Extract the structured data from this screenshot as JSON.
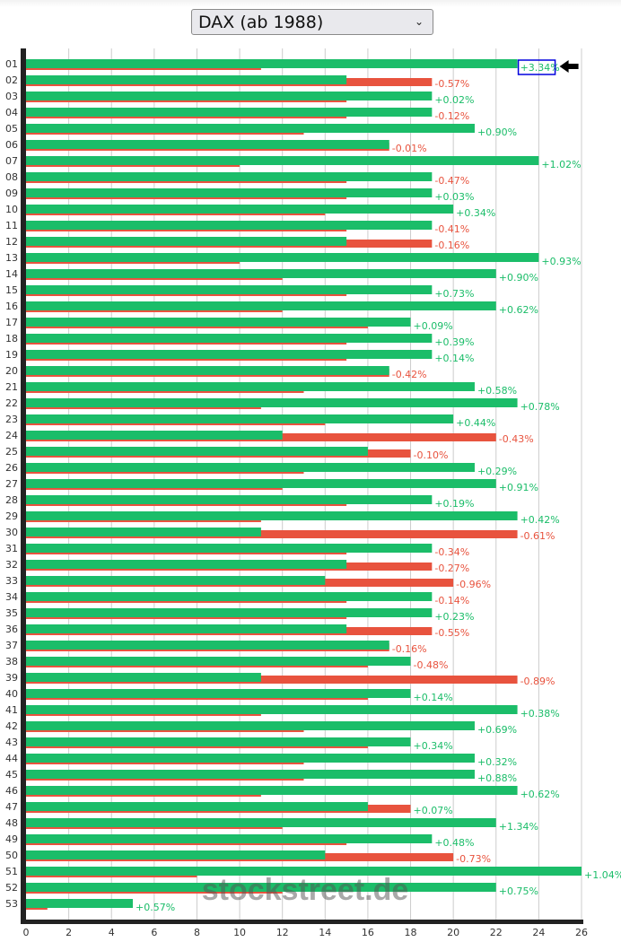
{
  "header": {
    "index_select": {
      "selected": "DAX (ab 1988)",
      "chevron": "chevron-down-icon"
    }
  },
  "watermark": "stockstreet.de",
  "highlight": {
    "week": "01",
    "marker": "arrow-left-icon",
    "box_color": "#0000dd"
  },
  "colors": {
    "positive": "#1bbd69",
    "negative": "#e8533e",
    "axis": "#222222",
    "grid": "#cccccc"
  },
  "chart_data": {
    "type": "bar",
    "orientation": "horizontal",
    "title": "DAX (ab 1988)",
    "xlabel": "",
    "ylabel": "",
    "xlim": [
      0,
      26
    ],
    "x_ticks": [
      "0",
      "2",
      "4",
      "6",
      "8",
      "10",
      "12",
      "14",
      "16",
      "18",
      "20",
      "22",
      "24",
      "26"
    ],
    "grid": true,
    "categories": [
      "01",
      "02",
      "03",
      "04",
      "05",
      "06",
      "07",
      "08",
      "09",
      "10",
      "11",
      "12",
      "13",
      "14",
      "15",
      "16",
      "17",
      "18",
      "19",
      "20",
      "21",
      "22",
      "23",
      "24",
      "25",
      "26",
      "27",
      "28",
      "29",
      "30",
      "31",
      "32",
      "33",
      "34",
      "35",
      "36",
      "37",
      "38",
      "39",
      "40",
      "41",
      "42",
      "43",
      "44",
      "45",
      "46",
      "47",
      "48",
      "49",
      "50",
      "51",
      "52",
      "53"
    ],
    "series": [
      {
        "name": "positive",
        "color": "#1bbd69",
        "values": [
          23,
          15,
          19,
          19,
          21,
          17,
          24,
          19,
          19,
          20,
          19,
          15,
          24,
          22,
          19,
          22,
          18,
          19,
          19,
          17,
          21,
          23,
          20,
          12,
          16,
          21,
          22,
          19,
          23,
          11,
          19,
          15,
          14,
          19,
          19,
          15,
          17,
          18,
          11,
          18,
          23,
          21,
          18,
          21,
          21,
          23,
          16,
          22,
          19,
          14,
          26,
          22,
          5
        ]
      },
      {
        "name": "negative",
        "color": "#e8533e",
        "values": [
          11,
          19,
          15,
          15,
          13,
          17,
          10,
          15,
          15,
          14,
          15,
          19,
          10,
          12,
          15,
          12,
          16,
          15,
          15,
          17,
          13,
          11,
          14,
          22,
          18,
          13,
          12,
          15,
          11,
          23,
          15,
          19,
          20,
          15,
          15,
          19,
          17,
          16,
          23,
          16,
          11,
          13,
          16,
          13,
          13,
          11,
          18,
          12,
          15,
          20,
          8,
          12,
          1
        ]
      }
    ],
    "annotations": [
      "+3.34%",
      "-0.57%",
      "+0.02%",
      "-0.12%",
      "+0.90%",
      "-0.01%",
      "+1.02%",
      "-0.47%",
      "+0.03%",
      "+0.34%",
      "-0.41%",
      "-0.16%",
      "+0.93%",
      "+0.90%",
      "+0.73%",
      "+0.62%",
      "+0.09%",
      "+0.39%",
      "+0.14%",
      "-0.42%",
      "+0.58%",
      "+0.78%",
      "+0.44%",
      "-0.43%",
      "-0.10%",
      "+0.29%",
      "+0.91%",
      "+0.19%",
      "+0.42%",
      "-0.61%",
      "-0.34%",
      "-0.27%",
      "-0.96%",
      "-0.14%",
      "+0.23%",
      "-0.55%",
      "-0.16%",
      "-0.48%",
      "-0.89%",
      "+0.14%",
      "+0.38%",
      "+0.69%",
      "+0.34%",
      "+0.32%",
      "+0.88%",
      "+0.62%",
      "+0.07%",
      "+1.34%",
      "+0.48%",
      "-0.73%",
      "+1.04%",
      "+0.75%",
      "+0.57%"
    ]
  }
}
